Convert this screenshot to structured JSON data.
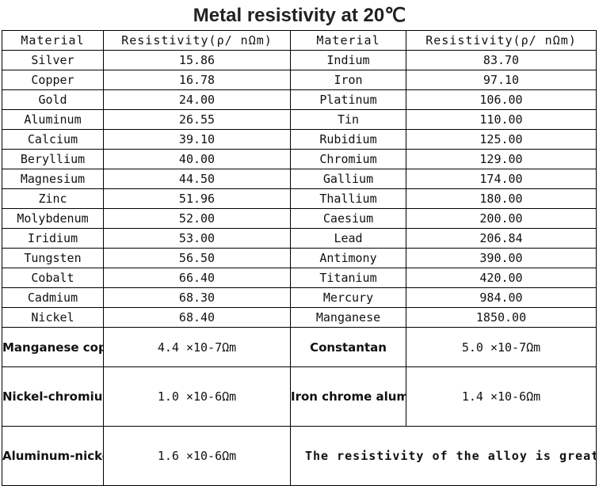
{
  "title": "Metal resistivity at 20℃",
  "headers": {
    "material_1": "Material",
    "resistivity_1": "Resistivity(ρ/ nΩm)",
    "material_2": "Material",
    "resistivity_2": "Resistivity(ρ/ nΩm)"
  },
  "rows": [
    {
      "m1": "Silver",
      "r1": "15.86",
      "m2": "Indium",
      "r2": "83.70"
    },
    {
      "m1": "Copper",
      "r1": "16.78",
      "m2": "Iron",
      "r2": "97.10"
    },
    {
      "m1": "Gold",
      "r1": "24.00",
      "m2": "Platinum",
      "r2": "106.00"
    },
    {
      "m1": "Aluminum",
      "r1": "26.55",
      "m2": "Tin",
      "r2": "110.00"
    },
    {
      "m1": "Calcium",
      "r1": "39.10",
      "m2": "Rubidium",
      "r2": "125.00"
    },
    {
      "m1": "Beryllium",
      "r1": "40.00",
      "m2": "Chromium",
      "r2": "129.00"
    },
    {
      "m1": "Magnesium",
      "r1": "44.50",
      "m2": "Gallium",
      "r2": "174.00"
    },
    {
      "m1": "Zinc",
      "r1": "51.96",
      "m2": "Thallium",
      "r2": "180.00"
    },
    {
      "m1": "Molybdenum",
      "r1": "52.00",
      "m2": "Caesium",
      "r2": "200.00"
    },
    {
      "m1": "Iridium",
      "r1": "53.00",
      "m2": "Lead",
      "r2": "206.84"
    },
    {
      "m1": "Tungsten",
      "r1": "56.50",
      "m2": "Antimony",
      "r2": "390.00"
    },
    {
      "m1": "Cobalt",
      "r1": "66.40",
      "m2": "Titanium",
      "r2": "420.00"
    },
    {
      "m1": "Cadmium",
      "r1": "68.30",
      "m2": "Mercury",
      "r2": "984.00"
    },
    {
      "m1": "Nickel",
      "r1": "68.40",
      "m2": "Manganese",
      "r2": "1850.00"
    }
  ],
  "alloys": [
    {
      "m1": "Manganese copper",
      "r1": "4.4 ×10-7Ωm",
      "m2": "Constantan",
      "r2": "5.0 ×10-7Ωm"
    },
    {
      "m1": "Nickel-chromium alloy",
      "r1": "1.0 ×10-6Ωm",
      "m2": "Iron chrome aluminum alloy",
      "r2": "1.4 ×10-6Ωm"
    },
    {
      "m1": "Aluminum-nickel-iron alloy",
      "r1": "1.6 ×10-6Ωm"
    }
  ],
  "note": "The resistivity of the alloy is greater than that of the metal"
}
